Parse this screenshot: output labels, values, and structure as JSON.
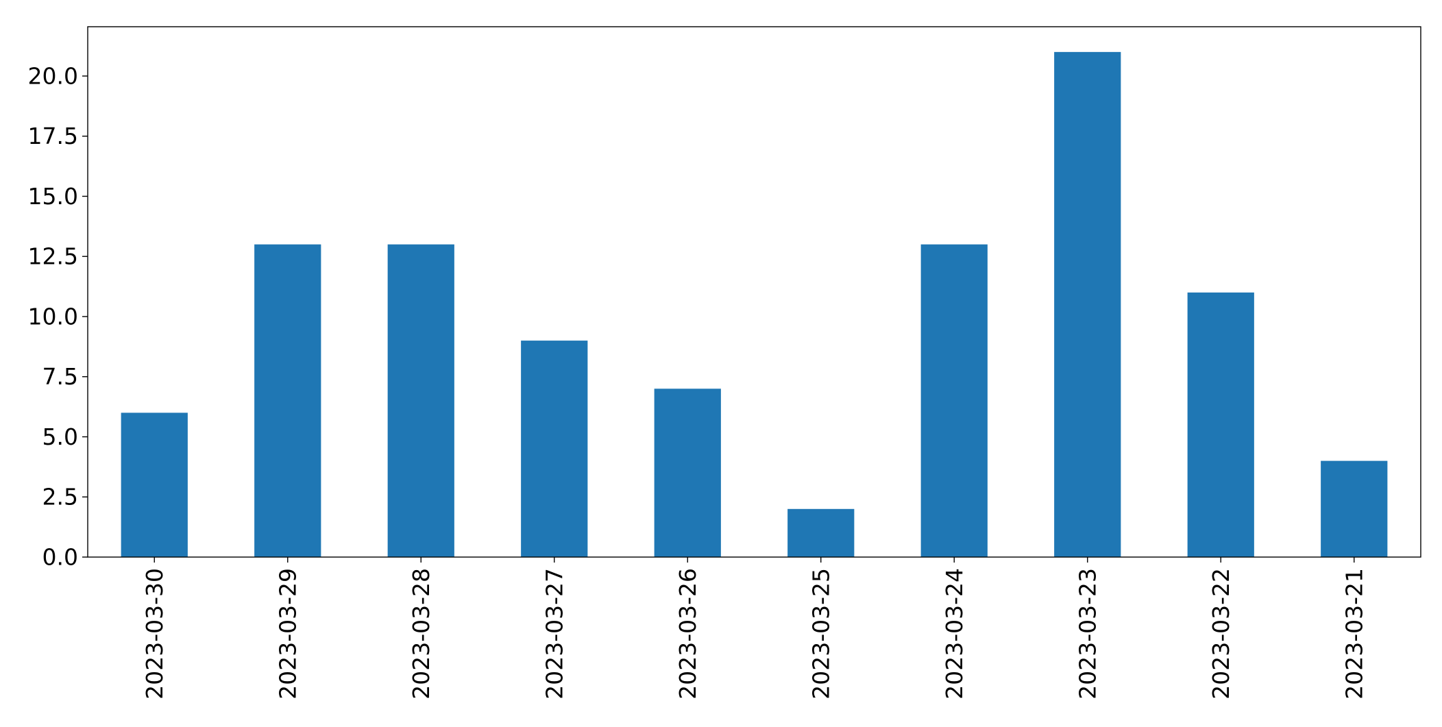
{
  "chart_data": {
    "type": "bar",
    "categories": [
      "2023-03-30",
      "2023-03-29",
      "2023-03-28",
      "2023-03-27",
      "2023-03-26",
      "2023-03-25",
      "2023-03-24",
      "2023-03-23",
      "2023-03-22",
      "2023-03-21"
    ],
    "values": [
      6,
      13,
      13,
      9,
      7,
      2,
      13,
      21,
      11,
      4
    ],
    "yticks": [
      "0.0",
      "2.5",
      "5.0",
      "7.5",
      "10.0",
      "12.5",
      "15.0",
      "17.5",
      "20.0"
    ],
    "ylim": [
      0,
      22.05
    ],
    "title": "",
    "xlabel": "",
    "ylabel": "",
    "legend": "none",
    "grid": false,
    "bar_color": "#1f77b4",
    "axis_color": "#000000"
  }
}
